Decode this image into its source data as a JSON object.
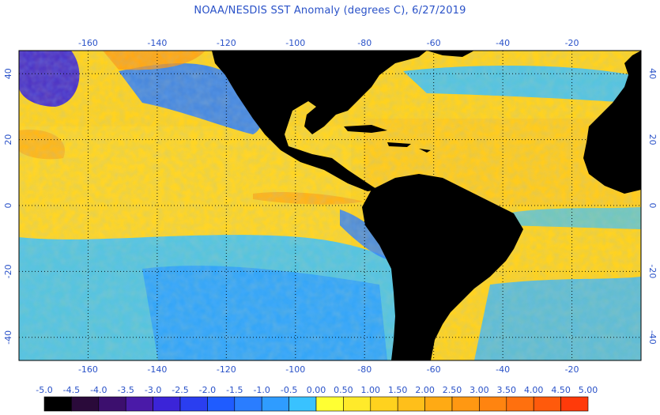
{
  "title": "NOAA/NESDIS SST Anomaly (degrees C), 6/27/2019",
  "map": {
    "lon_ticks": [
      "-160",
      "-140",
      "-120",
      "-100",
      "-80",
      "-60",
      "-40",
      "-20"
    ],
    "lat_ticks": [
      "40",
      "20",
      "0",
      "-20",
      "-40"
    ],
    "label_color": "#2a52c8",
    "land_color": "#000000",
    "grid_style": "dotted"
  },
  "colorbar": {
    "labels": [
      "-5.0",
      "-4.5",
      "-4.0",
      "-3.5",
      "-3.0",
      "-2.5",
      "-2.0",
      "-1.5",
      "-1.0",
      "-0.5",
      "0.00",
      "0.50",
      "1.00",
      "1.50",
      "2.00",
      "2.50",
      "3.00",
      "3.50",
      "4.00",
      "4.50",
      "5.00"
    ],
    "colors": [
      "#000000",
      "#2a0a3a",
      "#3c0f6e",
      "#4a1aa8",
      "#3b24d8",
      "#2a3ef0",
      "#1f5cff",
      "#2a7dff",
      "#2f9cff",
      "#39c2ff",
      "#ffff33",
      "#ffea2a",
      "#ffd21e",
      "#ffbf1a",
      "#ffaa14",
      "#ff9812",
      "#ff8410",
      "#ff700e",
      "#ff5a0c",
      "#ff3a0a"
    ]
  }
}
